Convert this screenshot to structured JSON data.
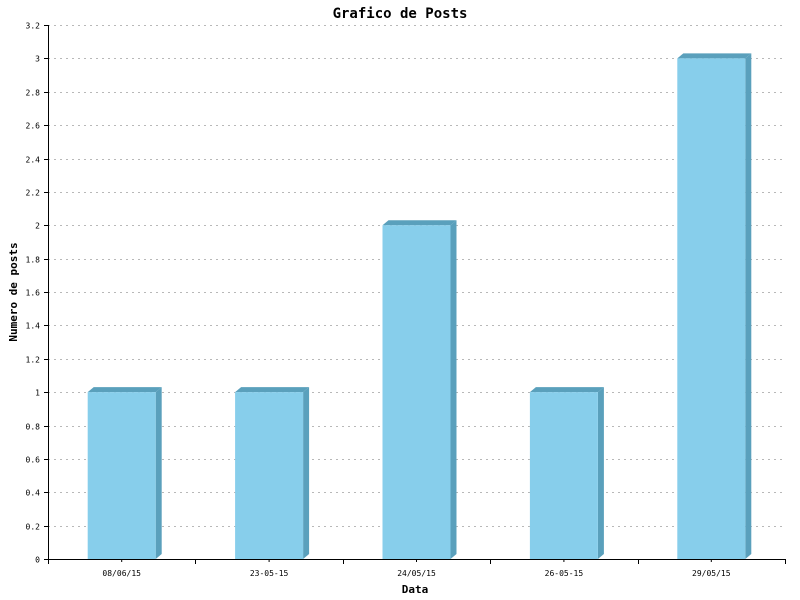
{
  "chart_data": {
    "type": "bar",
    "title": "Grafico de Posts",
    "xlabel": "Data",
    "ylabel": "Numero de posts",
    "categories": [
      "08/06/15",
      "23-05-15",
      "24/05/15",
      "26-05-15",
      "29/05/15"
    ],
    "values": [
      1,
      1,
      2,
      1,
      3
    ],
    "ylim": [
      0,
      3.2
    ],
    "yticks": [
      "0",
      "0.2",
      "0.4",
      "0.6",
      "0.8",
      "1",
      "1.2",
      "1.4",
      "1.6",
      "1.8",
      "2",
      "2.2",
      "2.4",
      "2.6",
      "2.8",
      "3",
      "3.2"
    ],
    "grid": true,
    "colors": {
      "bar": "#87ceeb",
      "bar_side": "#5aa0bc",
      "grid": "#b8b8b8",
      "axis": "#000000"
    }
  }
}
